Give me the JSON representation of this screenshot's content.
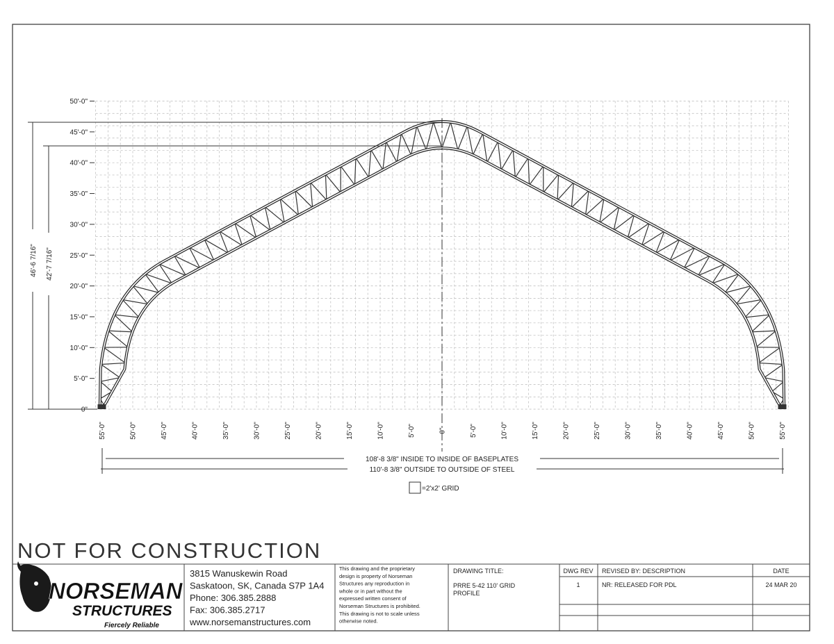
{
  "drawing": {
    "dimensions": {
      "outer_height": "46'-6 7/16\"",
      "inner_height": "42'-7 7/16\"",
      "inside_width": "108'-8 3/8\" INSIDE TO INSIDE OF BASEPLATES",
      "outside_width": "110'-8 3/8\" OUTSIDE TO OUTSIDE OF STEEL"
    },
    "y_labels": [
      "50'-0\"",
      "45'-0\"",
      "40'-0\"",
      "35'-0\"",
      "30'-0\"",
      "25'-0\"",
      "20'-0\"",
      "15'-0\"",
      "10'-0\"",
      "5'-0\"",
      "0\""
    ],
    "x_labels": [
      "55'-0\"",
      "50'-0\"",
      "45'-0\"",
      "40'-0\"",
      "35'-0\"",
      "30'-0\"",
      "25'-0\"",
      "20'-0\"",
      "15'-0\"",
      "10'-0\"",
      "5'-0\"",
      "0\"",
      "5'-0\"",
      "10'-0\"",
      "15'-0\"",
      "20'-0\"",
      "25'-0\"",
      "30'-0\"",
      "35'-0\"",
      "40'-0\"",
      "45'-0\"",
      "50'-0\"",
      "55'-0\""
    ],
    "grid_legend": "=2'x2' GRID",
    "watermark": "NOT FOR CONSTRUCTION"
  },
  "title_block": {
    "logo": {
      "name": "NORSEMAN",
      "sub": "STRUCTURES",
      "tagline": "Fiercely Reliable"
    },
    "address": [
      "3815 Wanuskewin Road",
      "Saskatoon, SK, Canada S7P 1A4",
      "Phone: 306.385.2888",
      "Fax: 306.385.2717",
      "www.norsemanstructures.com"
    ],
    "disclaimer": [
      "This drawing and the proprietary",
      "design is property of Norseman",
      "Structures any reproduction in",
      "whole or in part without the",
      "expressed written consent of",
      "Norseman Structures is prohibited.",
      "This drawing is not to scale unless",
      "otherwise noted."
    ],
    "drawing_title_label": "DRAWING TITLE:",
    "drawing_title": [
      "PRRE 5-42 110' GRID",
      "PROFILE"
    ],
    "dwg_rev_label": "DWG REV",
    "dwg_rev": "1",
    "revised_label": "REVISED BY: DESCRIPTION",
    "revised": "NR: RELEASED FOR PDL",
    "date_label": "DATE",
    "date": "24 MAR 20"
  }
}
